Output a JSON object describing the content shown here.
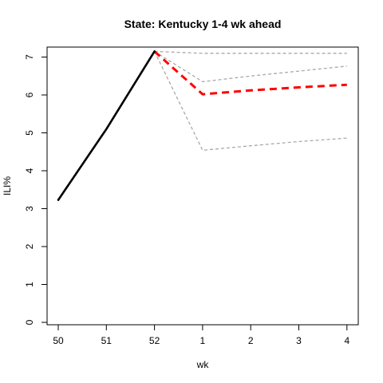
{
  "chart_data": {
    "type": "line",
    "title": "State: Kentucky 1-4 wk ahead",
    "xlabel": "wk",
    "ylabel": "ILI%",
    "x_categories": [
      "50",
      "51",
      "52",
      "1",
      "2",
      "3",
      "4"
    ],
    "ylim": [
      0,
      7.2
    ],
    "yticks": [
      0,
      1,
      2,
      3,
      4,
      5,
      6,
      7
    ],
    "grid": false,
    "legend": "none",
    "series": [
      {
        "role": "observed",
        "style": "solid",
        "color": "#000000",
        "x": [
          "50",
          "51",
          "52"
        ],
        "values": [
          3.23,
          5.1,
          7.15
        ]
      },
      {
        "role": "forecast",
        "style": "dashed",
        "color": "#ff0000",
        "x": [
          "52",
          "1",
          "2",
          "3",
          "4"
        ],
        "values": [
          7.15,
          6.02,
          6.12,
          6.2,
          6.27
        ]
      },
      {
        "role": "upper-bound",
        "style": "dashed",
        "color": "#a9a9a9",
        "x": [
          "52",
          "1",
          "2",
          "3",
          "4"
        ],
        "values": [
          7.15,
          7.1,
          7.1,
          7.1,
          7.1
        ]
      },
      {
        "role": "upper-inner",
        "style": "dashed",
        "color": "#a9a9a9",
        "x": [
          "52",
          "1",
          "2",
          "3",
          "4"
        ],
        "values": [
          7.15,
          6.35,
          6.5,
          6.63,
          6.76
        ]
      },
      {
        "role": "lower-bound",
        "style": "dashed",
        "color": "#a9a9a9",
        "x": [
          "52",
          "1",
          "2",
          "3",
          "4"
        ],
        "values": [
          7.15,
          4.54,
          4.66,
          4.77,
          4.86
        ]
      }
    ]
  }
}
